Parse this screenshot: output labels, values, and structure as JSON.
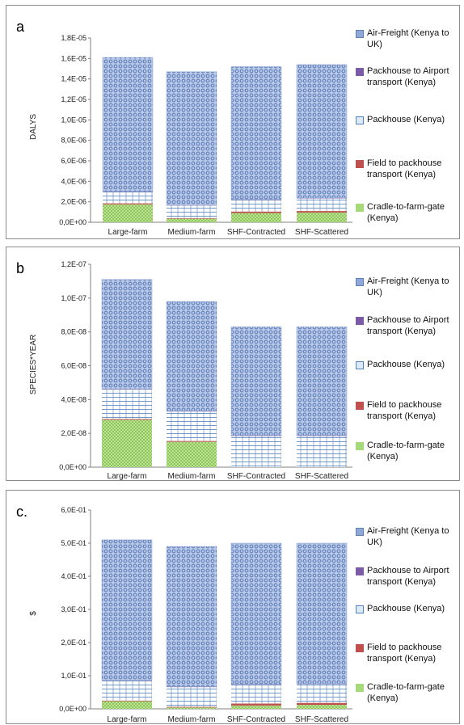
{
  "legend_labels": [
    "Air-Freight (Kenya to UK)",
    "Packhouse to Airport transport (Kenya)",
    "Packhouse (Kenya)",
    "Field to packhouse transport (Kenya)",
    "Cradle-to-farm-gate (Kenya)"
  ],
  "series_colors": {
    "air": "#8fa8d8",
    "packhouse_airport": "#7b5aa6",
    "packhouse": "#a9c4e6",
    "field_transport": "#c0504d",
    "cradle": "#a6d97a"
  },
  "chart_data": [
    {
      "type": "bar",
      "panel_label": "a",
      "stacked": true,
      "ylabel": "DALYS",
      "categories": [
        "Large-farm",
        "Medium-farm",
        "SHF-Contracted",
        "SHF-Scattered"
      ],
      "yticks": [
        "0,0E+00",
        "2,0E-06",
        "4,0E-06",
        "6,0E-06",
        "8,0E-06",
        "1,0E-05",
        "1,2E-05",
        "1,4E-05",
        "1,6E-05",
        "1,8E-05"
      ],
      "ylim": [
        0,
        1.8e-05
      ],
      "series": [
        {
          "key": "cradle",
          "values": [
            1.75e-06,
            3.5e-07,
            9e-07,
            9.5e-07
          ]
        },
        {
          "key": "field_transport",
          "values": [
            1e-07,
            5e-08,
            1.5e-07,
            1.5e-07
          ]
        },
        {
          "key": "packhouse",
          "values": [
            1.15e-06,
            1.25e-06,
            1.15e-06,
            1.25e-06
          ]
        },
        {
          "key": "packhouse_airport",
          "values": [
            3e-08,
            3e-08,
            3e-08,
            3e-08
          ]
        },
        {
          "key": "air",
          "values": [
            1.307e-05,
            1.302e-05,
            1.297e-05,
            1.302e-05
          ]
        }
      ]
    },
    {
      "type": "bar",
      "panel_label": "b",
      "stacked": true,
      "ylabel": "SPECIES*YEAR",
      "categories": [
        "Large-farm",
        "Medium-farm",
        "SHF-Contracted",
        "SHF-Scattered"
      ],
      "yticks": [
        "0,0E+00",
        "2,0E-08",
        "4,0E-08",
        "6,0E-08",
        "8,0E-08",
        "1,0E-07",
        "1,2E-07"
      ],
      "ylim": [
        0,
        1.2e-07
      ],
      "series": [
        {
          "key": "cradle",
          "values": [
            2.8e-08,
            1.5e-08,
            0,
            0
          ]
        },
        {
          "key": "field_transport",
          "values": [
            5e-10,
            5e-10,
            0,
            0
          ]
        },
        {
          "key": "packhouse",
          "values": [
            1.75e-08,
            1.75e-08,
            1.85e-08,
            1.85e-08
          ]
        },
        {
          "key": "packhouse_airport",
          "values": [
            2e-10,
            2e-10,
            2e-10,
            2e-10
          ]
        },
        {
          "key": "air",
          "values": [
            6.48e-08,
            6.48e-08,
            6.43e-08,
            6.43e-08
          ]
        }
      ]
    },
    {
      "type": "bar",
      "panel_label": "c.",
      "stacked": true,
      "ylabel": "$",
      "categories": [
        "Large-farm",
        "Medium-farm",
        "SHF-Contracted",
        "SHF-Scattered"
      ],
      "yticks": [
        "0,0E+00",
        "1,0E-01",
        "2,0E-01",
        "3,0E-01",
        "4,0E-01",
        "5,0E-01",
        "6,0E-01"
      ],
      "ylim": [
        0,
        0.6
      ],
      "series": [
        {
          "key": "cradle",
          "values": [
            0.023,
            0.004,
            0.01,
            0.012
          ]
        },
        {
          "key": "field_transport",
          "values": [
            0.002,
            0.002,
            0.006,
            0.006
          ]
        },
        {
          "key": "packhouse",
          "values": [
            0.06,
            0.06,
            0.057,
            0.057
          ]
        },
        {
          "key": "packhouse_airport",
          "values": [
            0.001,
            0.001,
            0.001,
            0.001
          ]
        },
        {
          "key": "air",
          "values": [
            0.424,
            0.423,
            0.426,
            0.424
          ]
        }
      ]
    }
  ]
}
